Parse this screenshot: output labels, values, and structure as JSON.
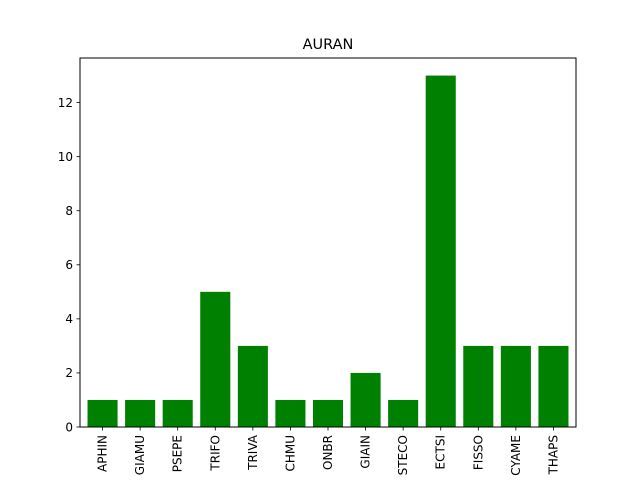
{
  "chart_data": {
    "type": "bar",
    "title": "AURAN",
    "xlabel": "",
    "ylabel": "",
    "categories": [
      "APHIN",
      "GIAMU",
      "PSEPE",
      "TRIFO",
      "TRIVA",
      "CHMU",
      "ONBR",
      "GIAIN",
      "STECO",
      "ECTSI",
      "FISSO",
      "CYAME",
      "THAPS"
    ],
    "values": [
      1,
      1,
      1,
      5,
      3,
      1,
      1,
      2,
      1,
      13,
      3,
      3,
      3
    ],
    "ylim": [
      0,
      13.65
    ],
    "yticks": [
      0,
      2,
      4,
      6,
      8,
      10,
      12
    ],
    "bar_color": "#008000",
    "grid": false,
    "legend": "none"
  }
}
